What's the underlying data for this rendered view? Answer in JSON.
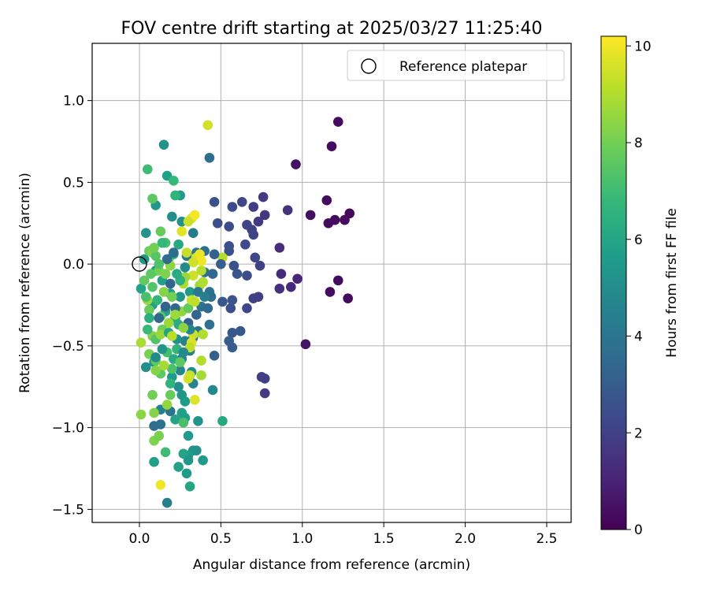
{
  "chart_data": {
    "type": "scatter",
    "title": "FOV centre drift starting at 2025/03/27 11:25:40",
    "xlabel": "Angular distance from reference (arcmin)",
    "ylabel": "Rotation from reference (arcmin)",
    "xlim": [
      -0.29,
      2.65
    ],
    "ylim": [
      -1.58,
      1.35
    ],
    "xticks": [
      0.0,
      0.5,
      1.0,
      1.5,
      2.0,
      2.5
    ],
    "xtick_labels": [
      "0.0",
      "0.5",
      "1.0",
      "1.5",
      "2.0",
      "2.5"
    ],
    "yticks": [
      -1.5,
      -1.0,
      -0.5,
      0.0,
      0.5,
      1.0
    ],
    "ytick_labels": [
      "−1.5",
      "−1.0",
      "−0.5",
      "0.0",
      "0.5",
      "1.0"
    ],
    "grid": true,
    "legend": {
      "position": "top-right",
      "entries": [
        "Reference platepar"
      ]
    },
    "reference_point": {
      "x": 0.0,
      "y": 0.0
    },
    "colorbar": {
      "label": "Hours from first FF file",
      "min": 0,
      "max": 10.2,
      "ticks": [
        0,
        2,
        4,
        6,
        8,
        10
      ],
      "tick_labels": [
        "0",
        "2",
        "4",
        "6",
        "8",
        "10"
      ],
      "colormap": "viridis",
      "colors": [
        "#440154",
        "#482878",
        "#3e4989",
        "#31688e",
        "#26828e",
        "#1f9e89",
        "#35b779",
        "#6ece58",
        "#b5de2b",
        "#fde725"
      ]
    },
    "points": [
      {
        "x": 1.22,
        "y": 0.87,
        "h": 0.3
      },
      {
        "x": 1.18,
        "y": 0.72,
        "h": 0.3
      },
      {
        "x": 0.96,
        "y": 0.61,
        "h": 0.4
      },
      {
        "x": 1.15,
        "y": 0.39,
        "h": 0.3
      },
      {
        "x": 1.29,
        "y": 0.31,
        "h": 0.2
      },
      {
        "x": 1.26,
        "y": 0.27,
        "h": 0.3
      },
      {
        "x": 1.05,
        "y": 0.3,
        "h": 0.4
      },
      {
        "x": 1.2,
        "y": 0.27,
        "h": 0.3
      },
      {
        "x": 1.16,
        "y": 0.25,
        "h": 0.3
      },
      {
        "x": 1.22,
        "y": -0.1,
        "h": 0.3
      },
      {
        "x": 1.17,
        "y": -0.17,
        "h": 0.3
      },
      {
        "x": 1.28,
        "y": -0.21,
        "h": 0.2
      },
      {
        "x": 1.02,
        "y": -0.49,
        "h": 0.5
      },
      {
        "x": 0.97,
        "y": -0.09,
        "h": 1.1
      },
      {
        "x": 0.93,
        "y": -0.14,
        "h": 1.2
      },
      {
        "x": 0.87,
        "y": -0.06,
        "h": 1.2
      },
      {
        "x": 0.86,
        "y": -0.15,
        "h": 1.4
      },
      {
        "x": 0.86,
        "y": 0.1,
        "h": 1.3
      },
      {
        "x": 0.91,
        "y": 0.33,
        "h": 1.5
      },
      {
        "x": 0.77,
        "y": 0.3,
        "h": 1.6
      },
      {
        "x": 0.76,
        "y": 0.41,
        "h": 1.7
      },
      {
        "x": 0.73,
        "y": 0.26,
        "h": 1.8
      },
      {
        "x": 0.7,
        "y": 0.35,
        "h": 1.9
      },
      {
        "x": 0.69,
        "y": 0.21,
        "h": 2.0
      },
      {
        "x": 0.66,
        "y": 0.24,
        "h": 2.1
      },
      {
        "x": 0.63,
        "y": 0.38,
        "h": 2.2
      },
      {
        "x": 0.57,
        "y": 0.35,
        "h": 2.3
      },
      {
        "x": 0.55,
        "y": 0.23,
        "h": 2.4
      },
      {
        "x": 0.48,
        "y": 0.25,
        "h": 2.5
      },
      {
        "x": 0.46,
        "y": 0.38,
        "h": 2.6
      },
      {
        "x": 0.7,
        "y": 0.18,
        "h": 2.1
      },
      {
        "x": 0.65,
        "y": 0.12,
        "h": 2.3
      },
      {
        "x": 0.71,
        "y": 0.04,
        "h": 2.2
      },
      {
        "x": 0.74,
        "y": -0.01,
        "h": 2.0
      },
      {
        "x": 0.66,
        "y": -0.07,
        "h": 2.4
      },
      {
        "x": 0.58,
        "y": -0.01,
        "h": 2.6
      },
      {
        "x": 0.6,
        "y": -0.06,
        "h": 2.7
      },
      {
        "x": 0.55,
        "y": 0.08,
        "h": 2.5
      },
      {
        "x": 0.55,
        "y": 0.11,
        "h": 2.6
      },
      {
        "x": 0.73,
        "y": -0.2,
        "h": 1.9
      },
      {
        "x": 0.7,
        "y": -0.21,
        "h": 2.0
      },
      {
        "x": 0.66,
        "y": -0.27,
        "h": 2.2
      },
      {
        "x": 0.56,
        "y": -0.27,
        "h": 2.5
      },
      {
        "x": 0.57,
        "y": -0.22,
        "h": 2.7
      },
      {
        "x": 0.51,
        "y": -0.23,
        "h": 2.8
      },
      {
        "x": 0.57,
        "y": -0.42,
        "h": 2.8
      },
      {
        "x": 0.62,
        "y": -0.41,
        "h": 2.9
      },
      {
        "x": 0.55,
        "y": -0.47,
        "h": 3.0
      },
      {
        "x": 0.57,
        "y": -0.51,
        "h": 3.0
      },
      {
        "x": 0.46,
        "y": -0.56,
        "h": 3.1
      },
      {
        "x": 0.75,
        "y": -0.69,
        "h": 2.0
      },
      {
        "x": 0.77,
        "y": -0.7,
        "h": 1.9
      },
      {
        "x": 0.77,
        "y": -0.79,
        "h": 1.8
      },
      {
        "x": 0.43,
        "y": 0.65,
        "h": 3.6
      },
      {
        "x": 0.4,
        "y": 0.08,
        "h": 3.7
      },
      {
        "x": 0.35,
        "y": 0.07,
        "h": 3.9
      },
      {
        "x": 0.29,
        "y": 0.05,
        "h": 4.0
      },
      {
        "x": 0.33,
        "y": 0.19,
        "h": 4.2
      },
      {
        "x": 0.4,
        "y": -0.05,
        "h": 3.8
      },
      {
        "x": 0.43,
        "y": -0.17,
        "h": 3.9
      },
      {
        "x": 0.44,
        "y": -0.2,
        "h": 3.6
      },
      {
        "x": 0.38,
        "y": -0.26,
        "h": 3.9
      },
      {
        "x": 0.43,
        "y": -0.37,
        "h": 3.8
      },
      {
        "x": 0.36,
        "y": -0.41,
        "h": 3.9
      },
      {
        "x": 0.33,
        "y": -0.45,
        "h": 4.2
      },
      {
        "x": 0.28,
        "y": -0.47,
        "h": 4.5
      },
      {
        "x": 0.26,
        "y": -0.58,
        "h": 4.4
      },
      {
        "x": 0.25,
        "y": -0.65,
        "h": 4.7
      },
      {
        "x": 0.31,
        "y": -0.53,
        "h": 4.3
      },
      {
        "x": 0.33,
        "y": -0.73,
        "h": 4.6
      },
      {
        "x": 0.32,
        "y": -0.66,
        "h": 4.9
      },
      {
        "x": 0.45,
        "y": -0.77,
        "h": 4.8
      },
      {
        "x": 0.24,
        "y": -0.75,
        "h": 5.0
      },
      {
        "x": 0.19,
        "y": -0.9,
        "h": 3.9
      },
      {
        "x": 0.09,
        "y": -0.99,
        "h": 3.7
      },
      {
        "x": 0.13,
        "y": -0.98,
        "h": 3.8
      },
      {
        "x": 0.13,
        "y": -0.89,
        "h": 4.5
      },
      {
        "x": 0.17,
        "y": -1.46,
        "h": 4.4
      },
      {
        "x": 0.15,
        "y": 0.73,
        "h": 5.2
      },
      {
        "x": 0.25,
        "y": 0.42,
        "h": 5.5
      },
      {
        "x": 0.1,
        "y": 0.36,
        "h": 5.4
      },
      {
        "x": 0.04,
        "y": 0.19,
        "h": 5.2
      },
      {
        "x": 0.26,
        "y": 0.26,
        "h": 5.1
      },
      {
        "x": 0.2,
        "y": 0.29,
        "h": 5.0
      },
      {
        "x": 0.17,
        "y": 0.54,
        "h": 5.7
      },
      {
        "x": 0.03,
        "y": 0.03,
        "h": 5.4
      },
      {
        "x": 0.1,
        "y": -0.04,
        "h": 5.6
      },
      {
        "x": 0.14,
        "y": -0.1,
        "h": 5.8
      },
      {
        "x": 0.19,
        "y": -0.18,
        "h": 5.5
      },
      {
        "x": 0.25,
        "y": -0.2,
        "h": 5.3
      },
      {
        "x": 0.31,
        "y": -0.17,
        "h": 5.6
      },
      {
        "x": 0.01,
        "y": -0.15,
        "h": 5.9
      },
      {
        "x": 0.08,
        "y": -0.25,
        "h": 5.7
      },
      {
        "x": 0.16,
        "y": -0.29,
        "h": 5.8
      },
      {
        "x": 0.22,
        "y": -0.33,
        "h": 6.0
      },
      {
        "x": 0.04,
        "y": -0.63,
        "h": 5.0
      },
      {
        "x": 0.09,
        "y": -0.6,
        "h": 5.3
      },
      {
        "x": 0.2,
        "y": -0.69,
        "h": 5.5
      },
      {
        "x": 0.26,
        "y": -0.8,
        "h": 5.4
      },
      {
        "x": 0.28,
        "y": -0.84,
        "h": 5.6
      },
      {
        "x": 0.26,
        "y": -0.91,
        "h": 5.8
      },
      {
        "x": 0.22,
        "y": -0.95,
        "h": 5.9
      },
      {
        "x": 0.28,
        "y": -0.94,
        "h": 5.7
      },
      {
        "x": 0.3,
        "y": -1.05,
        "h": 5.5
      },
      {
        "x": 0.36,
        "y": -0.96,
        "h": 5.3
      },
      {
        "x": 0.33,
        "y": -1.14,
        "h": 5.2
      },
      {
        "x": 0.3,
        "y": -1.17,
        "h": 5.6
      },
      {
        "x": 0.27,
        "y": -1.16,
        "h": 5.9
      },
      {
        "x": 0.3,
        "y": -1.2,
        "h": 5.4
      },
      {
        "x": 0.39,
        "y": -1.2,
        "h": 5.5
      },
      {
        "x": 0.35,
        "y": -1.14,
        "h": 5.1
      },
      {
        "x": 0.24,
        "y": -1.24,
        "h": 5.8
      },
      {
        "x": 0.29,
        "y": -1.28,
        "h": 5.6
      },
      {
        "x": 0.31,
        "y": -1.36,
        "h": 6.0
      },
      {
        "x": 0.51,
        "y": -0.96,
        "h": 6.1
      },
      {
        "x": 0.09,
        "y": -1.21,
        "h": 5.7
      },
      {
        "x": 0.21,
        "y": 0.51,
        "h": 6.8
      },
      {
        "x": 0.22,
        "y": 0.42,
        "h": 6.6
      },
      {
        "x": 0.05,
        "y": 0.58,
        "h": 7.0
      },
      {
        "x": 0.08,
        "y": 0.4,
        "h": 7.6
      },
      {
        "x": 0.13,
        "y": 0.2,
        "h": 7.8
      },
      {
        "x": 0.16,
        "y": 0.13,
        "h": 7.2
      },
      {
        "x": 0.14,
        "y": 0.13,
        "h": 6.8
      },
      {
        "x": 0.06,
        "y": 0.08,
        "h": 7.9
      },
      {
        "x": 0.08,
        "y": 0.07,
        "h": 8.2
      },
      {
        "x": 0.1,
        "y": 0.05,
        "h": 7.5
      },
      {
        "x": 0.18,
        "y": 0.03,
        "h": 7.9
      },
      {
        "x": 0.19,
        "y": -0.01,
        "h": 8.4
      },
      {
        "x": 0.12,
        "y": -0.04,
        "h": 8.1
      },
      {
        "x": 0.03,
        "y": -0.1,
        "h": 7.7
      },
      {
        "x": 0.08,
        "y": -0.14,
        "h": 7.4
      },
      {
        "x": 0.15,
        "y": -0.17,
        "h": 8.3
      },
      {
        "x": 0.2,
        "y": -0.2,
        "h": 8.0
      },
      {
        "x": 0.05,
        "y": -0.22,
        "h": 8.6
      },
      {
        "x": 0.06,
        "y": -0.28,
        "h": 7.8
      },
      {
        "x": 0.13,
        "y": -0.32,
        "h": 7.5
      },
      {
        "x": 0.18,
        "y": -0.36,
        "h": 8.7
      },
      {
        "x": 0.14,
        "y": -0.4,
        "h": 7.9
      },
      {
        "x": 0.08,
        "y": -0.44,
        "h": 8.3
      },
      {
        "x": 0.1,
        "y": -0.46,
        "h": 7.4
      },
      {
        "x": 0.13,
        "y": -0.43,
        "h": 8.6
      },
      {
        "x": 0.01,
        "y": -0.48,
        "h": 8.9
      },
      {
        "x": 0.06,
        "y": -0.55,
        "h": 8.1
      },
      {
        "x": 0.1,
        "y": -0.59,
        "h": 7.7
      },
      {
        "x": 0.17,
        "y": -0.54,
        "h": 7.1
      },
      {
        "x": 0.2,
        "y": -0.64,
        "h": 7.3
      },
      {
        "x": 0.13,
        "y": -0.67,
        "h": 7.6
      },
      {
        "x": 0.19,
        "y": -0.8,
        "h": 7.8
      },
      {
        "x": 0.08,
        "y": -0.8,
        "h": 8.0
      },
      {
        "x": 0.17,
        "y": -0.86,
        "h": 8.5
      },
      {
        "x": 0.09,
        "y": -0.91,
        "h": 8.3
      },
      {
        "x": 0.01,
        "y": -0.92,
        "h": 8.4
      },
      {
        "x": 0.09,
        "y": -1.08,
        "h": 8.2
      },
      {
        "x": 0.12,
        "y": -1.05,
        "h": 8.1
      },
      {
        "x": 0.16,
        "y": -1.15,
        "h": 7.0
      },
      {
        "x": 0.27,
        "y": -0.97,
        "h": 7.2
      },
      {
        "x": 0.26,
        "y": -0.29,
        "h": 8.5
      },
      {
        "x": 0.3,
        "y": -0.27,
        "h": 7.7
      },
      {
        "x": 0.27,
        "y": -0.12,
        "h": 8.9
      },
      {
        "x": 0.32,
        "y": -0.22,
        "h": 9.3
      },
      {
        "x": 0.34,
        "y": -0.23,
        "h": 9.2
      },
      {
        "x": 0.37,
        "y": -0.13,
        "h": 8.8
      },
      {
        "x": 0.39,
        "y": -0.11,
        "h": 9.0
      },
      {
        "x": 0.38,
        "y": -0.04,
        "h": 9.1
      },
      {
        "x": 0.33,
        "y": -0.07,
        "h": 9.4
      },
      {
        "x": 0.28,
        "y": -0.08,
        "h": 8.6
      },
      {
        "x": 0.35,
        "y": 0.04,
        "h": 9.7
      },
      {
        "x": 0.37,
        "y": 0.06,
        "h": 9.9
      },
      {
        "x": 0.38,
        "y": 0.02,
        "h": 10.0
      },
      {
        "x": 0.33,
        "y": 0.01,
        "h": 9.5
      },
      {
        "x": 0.29,
        "y": 0.07,
        "h": 9.3
      },
      {
        "x": 0.51,
        "y": 0.04,
        "h": 9.1
      },
      {
        "x": 0.32,
        "y": 0.28,
        "h": 9.6
      },
      {
        "x": 0.34,
        "y": 0.3,
        "h": 10.1
      },
      {
        "x": 0.3,
        "y": 0.26,
        "h": 9.4
      },
      {
        "x": 0.26,
        "y": 0.2,
        "h": 9.8
      },
      {
        "x": 0.42,
        "y": 0.85,
        "h": 9.5
      },
      {
        "x": 0.39,
        "y": -0.43,
        "h": 9.0
      },
      {
        "x": 0.33,
        "y": -0.43,
        "h": 9.4
      },
      {
        "x": 0.32,
        "y": -0.48,
        "h": 9.6
      },
      {
        "x": 0.31,
        "y": -0.51,
        "h": 9.2
      },
      {
        "x": 0.38,
        "y": -0.59,
        "h": 9.0
      },
      {
        "x": 0.31,
        "y": -0.68,
        "h": 9.3
      },
      {
        "x": 0.3,
        "y": -0.7,
        "h": 9.5
      },
      {
        "x": 0.38,
        "y": -0.68,
        "h": 8.8
      },
      {
        "x": 0.34,
        "y": -0.83,
        "h": 9.7
      },
      {
        "x": 0.13,
        "y": -1.35,
        "h": 10.0
      },
      {
        "x": 0.25,
        "y": -0.1,
        "h": 6.5
      },
      {
        "x": 0.23,
        "y": -0.06,
        "h": 6.2
      },
      {
        "x": 0.21,
        "y": 0.06,
        "h": 6.4
      },
      {
        "x": 0.24,
        "y": 0.12,
        "h": 6.1
      },
      {
        "x": 0.28,
        "y": -0.02,
        "h": 4.9
      },
      {
        "x": 0.24,
        "y": -0.37,
        "h": 6.3
      },
      {
        "x": 0.23,
        "y": -0.52,
        "h": 6.6
      },
      {
        "x": 0.21,
        "y": -0.58,
        "h": 6.2
      },
      {
        "x": 0.06,
        "y": -0.33,
        "h": 6.4
      },
      {
        "x": 0.11,
        "y": -0.22,
        "h": 6.7
      },
      {
        "x": 0.18,
        "y": -0.42,
        "h": 6.0
      },
      {
        "x": 0.16,
        "y": -0.26,
        "h": 3.2
      },
      {
        "x": 0.22,
        "y": -0.27,
        "h": 3.4
      },
      {
        "x": 0.19,
        "y": -0.12,
        "h": 3.3
      },
      {
        "x": 0.17,
        "y": 0.03,
        "h": 3.5
      },
      {
        "x": 0.21,
        "y": 0.07,
        "h": 3.6
      },
      {
        "x": 0.12,
        "y": -0.33,
        "h": 3.4
      },
      {
        "x": 0.3,
        "y": -0.36,
        "h": 3.1
      },
      {
        "x": 0.35,
        "y": -0.31,
        "h": 3.3
      },
      {
        "x": 0.42,
        "y": -0.27,
        "h": 3.5
      },
      {
        "x": 0.45,
        "y": -0.06,
        "h": 3.4
      },
      {
        "x": 0.46,
        "y": 0.06,
        "h": 3.2
      },
      {
        "x": 0.5,
        "y": 0.0,
        "h": 3.0
      },
      {
        "x": 0.36,
        "y": -0.17,
        "h": 4.1
      },
      {
        "x": 0.4,
        "y": -0.2,
        "h": 4.4
      },
      {
        "x": 0.31,
        "y": -0.4,
        "h": 4.6
      },
      {
        "x": 0.27,
        "y": -0.54,
        "h": 4.8
      },
      {
        "x": 0.23,
        "y": -0.46,
        "h": 5.1
      },
      {
        "x": 0.14,
        "y": -0.52,
        "h": 5.3
      },
      {
        "x": 0.1,
        "y": -0.57,
        "h": 4.9
      },
      {
        "x": 0.05,
        "y": -0.4,
        "h": 6.9
      },
      {
        "x": 0.04,
        "y": -0.2,
        "h": 7.2
      },
      {
        "x": 0.07,
        "y": -0.06,
        "h": 7.6
      },
      {
        "x": 0.09,
        "y": 0.1,
        "h": 8.0
      },
      {
        "x": 0.12,
        "y": 0.0,
        "h": 7.3
      },
      {
        "x": 0.16,
        "y": -0.06,
        "h": 8.2
      },
      {
        "x": 0.22,
        "y": -0.31,
        "h": 8.7
      },
      {
        "x": 0.27,
        "y": -0.39,
        "h": 8.4
      },
      {
        "x": 0.2,
        "y": -0.44,
        "h": 9.1
      },
      {
        "x": 0.25,
        "y": -0.6,
        "h": 7.6
      },
      {
        "x": 0.15,
        "y": -0.62,
        "h": 8.8
      },
      {
        "x": 0.1,
        "y": -0.65,
        "h": 8.3
      },
      {
        "x": 0.19,
        "y": -0.73,
        "h": 6.6
      }
    ]
  }
}
